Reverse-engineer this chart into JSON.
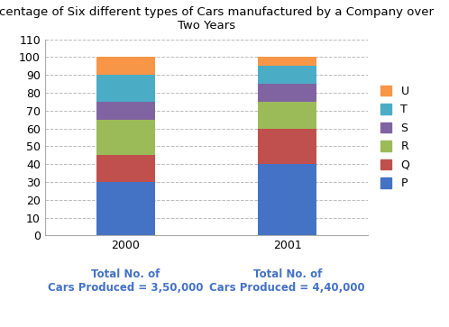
{
  "title": "Percentage of Six different types of Cars manufactured by a Company over\nTwo Years",
  "years": [
    "2000",
    "2001"
  ],
  "categories": [
    "P",
    "Q",
    "R",
    "S",
    "T",
    "U"
  ],
  "values": {
    "2000": [
      30,
      15,
      20,
      10,
      15,
      10
    ],
    "2001": [
      40,
      20,
      15,
      10,
      10,
      5
    ]
  },
  "colors": {
    "P": "#4472C4",
    "Q": "#C0504D",
    "R": "#9BBB59",
    "S": "#8064A2",
    "T": "#4BACC6",
    "U": "#F79646"
  },
  "xlabel_notes": [
    "Total No. of\nCars Produced = 3,50,000",
    "Total No. of\nCars Produced = 4,40,000"
  ],
  "ylim": [
    0,
    110
  ],
  "yticks": [
    0,
    10,
    20,
    30,
    40,
    50,
    60,
    70,
    80,
    90,
    100,
    110
  ],
  "background_color": "#ffffff",
  "grid_color": "#bbbbbb",
  "title_fontsize": 9.5,
  "tick_fontsize": 9,
  "legend_fontsize": 9,
  "note_fontsize": 8.5,
  "note_color": "#4472C4"
}
